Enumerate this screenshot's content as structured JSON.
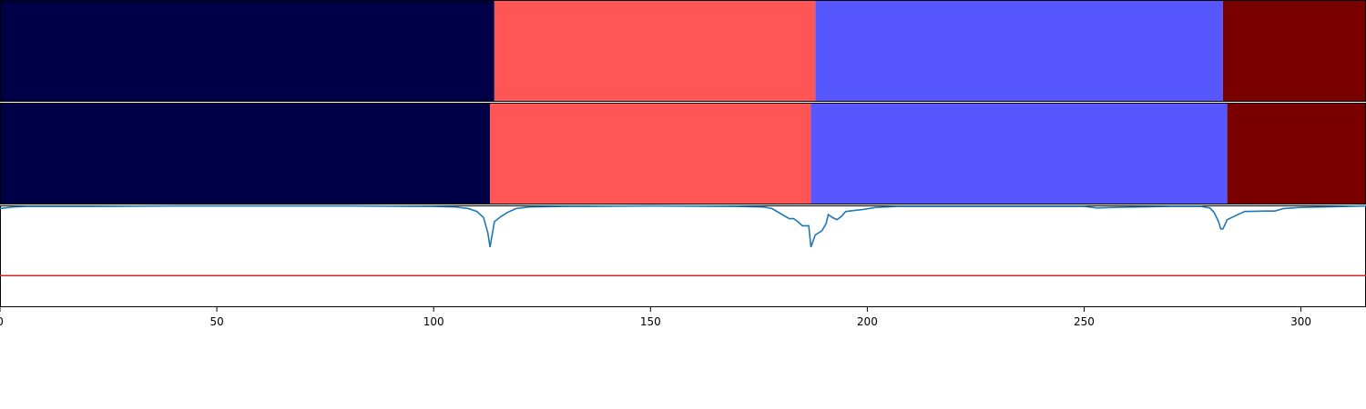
{
  "chart_data": {
    "type": "segmentation",
    "x_range": [
      0,
      315
    ],
    "x_ticks": [
      0,
      50,
      100,
      150,
      200,
      250,
      300
    ],
    "tick_labels": [
      "0",
      "50",
      "100",
      "150",
      "200",
      "250",
      "300"
    ],
    "rows": [
      {
        "segments": [
          {
            "start": 0,
            "end": 114,
            "color": "#000046"
          },
          {
            "start": 114,
            "end": 188,
            "color": "#ff5555"
          },
          {
            "start": 188,
            "end": 282,
            "color": "#5757ff"
          },
          {
            "start": 282,
            "end": 315,
            "color": "#7a0000"
          }
        ]
      },
      {
        "segments": [
          {
            "start": 0,
            "end": 113,
            "color": "#000046"
          },
          {
            "start": 113,
            "end": 187,
            "color": "#ff5555"
          },
          {
            "start": 187,
            "end": 283,
            "color": "#5757ff"
          },
          {
            "start": 283,
            "end": 315,
            "color": "#7a0000"
          }
        ]
      }
    ],
    "signal": {
      "color": "#1f77b4",
      "y_range": [
        0,
        1
      ],
      "points": [
        [
          0,
          0.97
        ],
        [
          3,
          0.985
        ],
        [
          6,
          0.99
        ],
        [
          20,
          0.99
        ],
        [
          40,
          0.995
        ],
        [
          60,
          0.995
        ],
        [
          80,
          0.995
        ],
        [
          100,
          0.99
        ],
        [
          105,
          0.985
        ],
        [
          108,
          0.97
        ],
        [
          110,
          0.94
        ],
        [
          111.5,
          0.88
        ],
        [
          112.5,
          0.73
        ],
        [
          113,
          0.59
        ],
        [
          114,
          0.84
        ],
        [
          115.5,
          0.89
        ],
        [
          117,
          0.93
        ],
        [
          119,
          0.97
        ],
        [
          122,
          0.985
        ],
        [
          130,
          0.99
        ],
        [
          150,
          0.995
        ],
        [
          170,
          0.99
        ],
        [
          176,
          0.985
        ],
        [
          178,
          0.97
        ],
        [
          180,
          0.92
        ],
        [
          182,
          0.87
        ],
        [
          183,
          0.87
        ],
        [
          184,
          0.84
        ],
        [
          185,
          0.8
        ],
        [
          186.5,
          0.8
        ],
        [
          187,
          0.59
        ],
        [
          188,
          0.71
        ],
        [
          189.5,
          0.75
        ],
        [
          190.5,
          0.82
        ],
        [
          191,
          0.91
        ],
        [
          192,
          0.88
        ],
        [
          193,
          0.86
        ],
        [
          194,
          0.89
        ],
        [
          195,
          0.94
        ],
        [
          197,
          0.95
        ],
        [
          199,
          0.96
        ],
        [
          202,
          0.98
        ],
        [
          207,
          0.99
        ],
        [
          230,
          0.99
        ],
        [
          250,
          0.99
        ],
        [
          253,
          0.975
        ],
        [
          257,
          0.98
        ],
        [
          270,
          0.99
        ],
        [
          277,
          0.99
        ],
        [
          279,
          0.975
        ],
        [
          280,
          0.93
        ],
        [
          281,
          0.84
        ],
        [
          281.5,
          0.77
        ],
        [
          282,
          0.77
        ],
        [
          283,
          0.86
        ],
        [
          285,
          0.9
        ],
        [
          287,
          0.94
        ],
        [
          292,
          0.945
        ],
        [
          294,
          0.945
        ],
        [
          296,
          0.97
        ],
        [
          300,
          0.98
        ],
        [
          305,
          0.985
        ],
        [
          315,
          0.995
        ]
      ]
    },
    "threshold": {
      "value": 0.31,
      "color": "#d62728"
    }
  }
}
